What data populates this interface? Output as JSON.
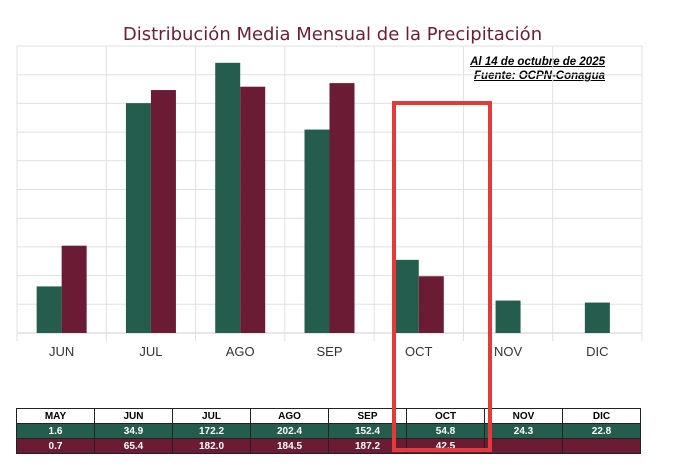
{
  "chart_data": {
    "type": "bar",
    "title": "Distribución Media Mensual de la Precipitación",
    "annotation_lines": [
      "Al 14 de octubre de 2025",
      "Fuente: OCPN-Conagua"
    ],
    "categories": [
      "JUN",
      "JUL",
      "AGO",
      "SEP",
      "OCT",
      "NOV",
      "DIC"
    ],
    "series": [
      {
        "color": "#245c4e",
        "values": [
          34.9,
          172.2,
          202.4,
          152.4,
          54.8,
          24.3,
          22.8
        ]
      },
      {
        "color": "#6b1b33",
        "values": [
          65.4,
          182.0,
          184.5,
          187.2,
          42.5,
          null,
          null
        ]
      }
    ],
    "ylim": [
      0,
      215
    ],
    "grid": true,
    "highlight_category": "OCT",
    "table": {
      "headers": [
        "MAY",
        "JUN",
        "JUL",
        "AGO",
        "SEP",
        "OCT",
        "NOV",
        "DIC"
      ],
      "rows": [
        [
          "1.6",
          "34.9",
          "172.2",
          "202.4",
          "152.4",
          "54.8",
          "24.3",
          "22.8"
        ],
        [
          "0.7",
          "65.4",
          "182.0",
          "184.5",
          "187.2",
          "42.5",
          "",
          ""
        ]
      ]
    }
  },
  "colors": {
    "title": "#6a1f35",
    "highlight": "#e33b3b",
    "grid": "#e0e0e0"
  }
}
